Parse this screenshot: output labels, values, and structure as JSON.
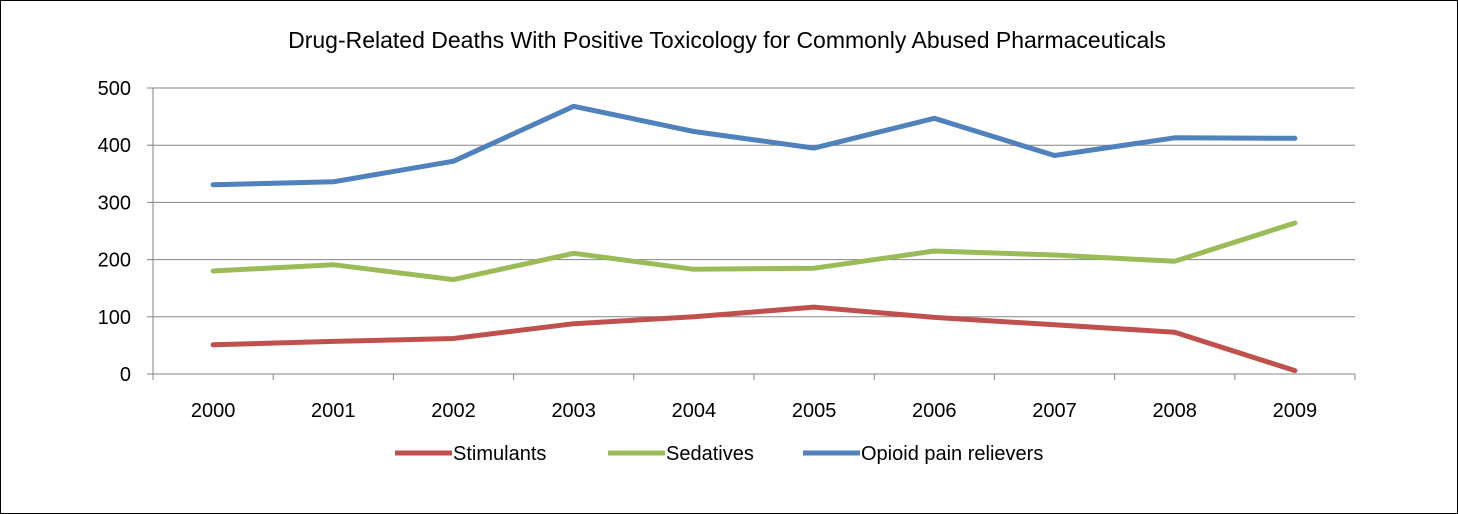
{
  "chart_data": {
    "type": "line",
    "title": "Drug-Related Deaths With Positive Toxicology for Commonly Abused Pharmaceuticals",
    "xlabel": "",
    "ylabel": "",
    "categories": [
      "2000",
      "2001",
      "2002",
      "2003",
      "2004",
      "2005",
      "2006",
      "2007",
      "2008",
      "2009"
    ],
    "ylim": [
      0,
      500
    ],
    "yticks": [
      "0",
      "100",
      "200",
      "300",
      "400",
      "500"
    ],
    "grid": true,
    "legend_position": "bottom",
    "series": [
      {
        "name": "Stimulants",
        "color": "#c0504d",
        "values": [
          51,
          57,
          62,
          88,
          100,
          117,
          99,
          86,
          73,
          6
        ]
      },
      {
        "name": "Sedatives",
        "color": "#9bbb59",
        "values": [
          180,
          191,
          165,
          211,
          183,
          185,
          215,
          208,
          197,
          264
        ]
      },
      {
        "name": "Opioid pain relievers",
        "color": "#4f81bd",
        "values": [
          331,
          336,
          372,
          468,
          424,
          395,
          447,
          382,
          413,
          412
        ]
      }
    ]
  }
}
